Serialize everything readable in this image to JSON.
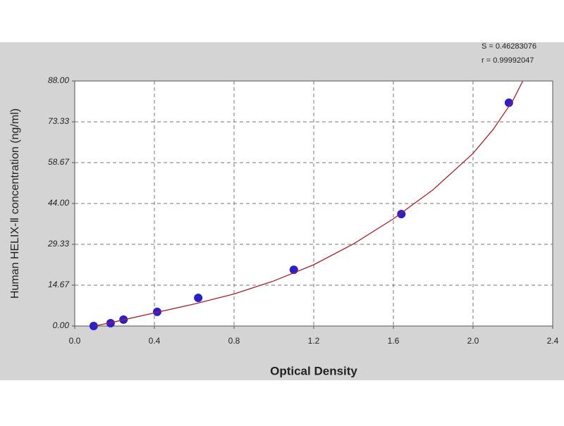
{
  "chart_data": {
    "type": "scatter",
    "xlabel": "Optical Density",
    "ylabel": "Human HELIX-Ⅱ concentration (ng/ml)",
    "annotations": [
      "S = 0.46283076",
      "r = 0.99992047"
    ],
    "xlim": [
      0,
      2.4
    ],
    "ylim": [
      0,
      88
    ],
    "xticks": [
      {
        "value": 0,
        "label": "0.0"
      },
      0.4,
      0.8,
      1.2,
      1.6,
      {
        "value": 2,
        "label": "2.0"
      },
      2.4
    ],
    "yticks": [
      {
        "value": 0,
        "label": "0.00"
      },
      14.67,
      29.33,
      {
        "value": 44,
        "label": "44.00"
      },
      58.67,
      73.33,
      {
        "value": 88,
        "label": "88.00"
      }
    ],
    "grid": true,
    "series": [
      {
        "kind": "points",
        "color": "#2b1fc9",
        "x": [
          0.095,
          0.18,
          0.245,
          0.414,
          0.62,
          1.1,
          1.64,
          2.18
        ],
        "values": [
          0,
          1.0,
          2.3,
          5.1,
          10.1,
          20.2,
          40.2,
          80.2
        ]
      },
      {
        "kind": "line",
        "color": "#a3202a",
        "x": [
          0.1,
          0.2,
          0.4,
          0.6,
          0.8,
          1.0,
          1.2,
          1.4,
          1.6,
          1.8,
          2.0,
          2.1,
          2.2,
          2.25
        ],
        "values": [
          0,
          1.5,
          4.7,
          7.9,
          11.5,
          16.2,
          22,
          29.5,
          38.5,
          49,
          62,
          70.5,
          81,
          88
        ]
      }
    ]
  }
}
